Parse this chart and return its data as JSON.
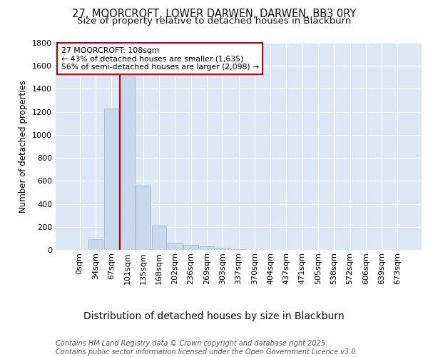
{
  "title": "27, MOORCROFT, LOWER DARWEN, DARWEN, BB3 0RY",
  "subtitle": "Size of property relative to detached houses in Blackburn",
  "xlabel": "Distribution of detached houses by size in Blackburn",
  "ylabel": "Number of detached properties",
  "bar_labels": [
    "0sqm",
    "34sqm",
    "67sqm",
    "101sqm",
    "135sqm",
    "168sqm",
    "202sqm",
    "236sqm",
    "269sqm",
    "303sqm",
    "337sqm",
    "370sqm",
    "404sqm",
    "437sqm",
    "471sqm",
    "505sqm",
    "538sqm",
    "572sqm",
    "606sqm",
    "639sqm",
    "673sqm"
  ],
  "bar_values": [
    0,
    95,
    1230,
    1510,
    560,
    210,
    65,
    45,
    30,
    20,
    5,
    0,
    2,
    0,
    0,
    0,
    0,
    0,
    0,
    0,
    0
  ],
  "bar_color": "#c8d8ed",
  "bar_edgecolor": "#9ab0cc",
  "vline_color": "#cc0000",
  "annotation_text": "27 MOORCROFT: 108sqm\n← 43% of detached houses are smaller (1,635)\n56% of semi-detached houses are larger (2,098) →",
  "annotation_box_edgecolor": "#cc0000",
  "annotation_box_facecolor": "#ffffff",
  "ylim": [
    0,
    1800
  ],
  "yticks": [
    0,
    200,
    400,
    600,
    800,
    1000,
    1200,
    1400,
    1600,
    1800
  ],
  "footer_text": "Contains HM Land Registry data © Crown copyright and database right 2025.\nContains public sector information licensed under the Open Government Licence v3.0.",
  "fig_background_color": "#ffffff",
  "plot_background_color": "#dce8f5",
  "grid_color": "#ffffff",
  "title_fontsize": 10.5,
  "subtitle_fontsize": 9.5,
  "xlabel_fontsize": 10,
  "ylabel_fontsize": 8.5,
  "tick_fontsize": 8,
  "footer_fontsize": 7,
  "vline_bin_index": 3
}
